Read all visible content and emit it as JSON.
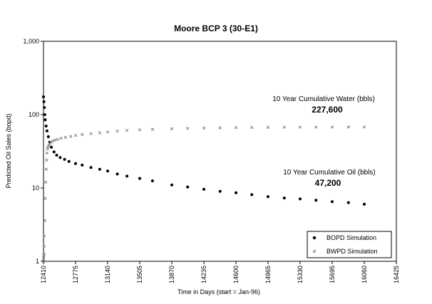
{
  "chart_data": {
    "type": "scatter",
    "title": "Moore BCP 3 (30-E1)",
    "xlabel": "Time in Days (start = Jan-96)",
    "ylabel": "Predicted Oil Sales (bopd)",
    "xlim": [
      12410,
      16425
    ],
    "ylim": [
      1,
      1000
    ],
    "yscale": "log",
    "xticks": [
      12410,
      12775,
      13140,
      13505,
      13870,
      14235,
      14600,
      14965,
      15330,
      15695,
      16060,
      16425
    ],
    "yticks": [
      {
        "value": 1,
        "label": "1"
      },
      {
        "value": 10,
        "label": "10"
      },
      {
        "value": 100,
        "label": "100"
      },
      {
        "value": 1000,
        "label": "1,000"
      }
    ],
    "grid": false,
    "legend": "bottom-right",
    "series": [
      {
        "name": "BOPD Simulation",
        "marker": "dot",
        "color": "#000000",
        "x": [
          12410,
          12415,
          12420,
          12425,
          12430,
          12440,
          12450,
          12465,
          12480,
          12500,
          12530,
          12560,
          12600,
          12650,
          12700,
          12775,
          12850,
          12950,
          13050,
          13140,
          13250,
          13360,
          13505,
          13650,
          13870,
          14050,
          14235,
          14420,
          14600,
          14780,
          14965,
          15150,
          15330,
          15510,
          15695,
          15880,
          16060
        ],
        "y": [
          175,
          150,
          125,
          100,
          85,
          70,
          60,
          50,
          42,
          36,
          31,
          28,
          26,
          24.5,
          23,
          21.5,
          20.5,
          19,
          18,
          17,
          15.5,
          14.5,
          13.5,
          12.5,
          11,
          10.3,
          9.6,
          9,
          8.6,
          8.1,
          7.6,
          7.3,
          7.1,
          6.8,
          6.5,
          6.3,
          6
        ]
      },
      {
        "name": "BWPD Simulation",
        "marker": "x",
        "color": "#808080",
        "x": [
          12410,
          12412,
          12414,
          12416,
          12418,
          12420,
          12425,
          12430,
          12435,
          12440,
          12445,
          12450,
          12455,
          12460,
          12470,
          12480,
          12495,
          12515,
          12540,
          12570,
          12610,
          12660,
          12720,
          12775,
          12850,
          12950,
          13050,
          13140,
          13250,
          13360,
          13505,
          13650,
          13870,
          14050,
          14235,
          14420,
          14600,
          14780,
          14965,
          15150,
          15330,
          15510,
          15695,
          15880,
          16060
        ],
        "y": [
          1.0,
          1.1,
          1.2,
          1.25,
          1.6,
          2.2,
          3.6,
          7.2,
          12,
          18,
          24,
          30,
          34,
          36,
          38,
          40,
          42,
          43.5,
          45,
          46,
          47.5,
          49,
          50.5,
          52,
          53.5,
          55,
          56.5,
          58,
          59.5,
          61,
          62,
          63,
          64,
          65,
          65.5,
          66,
          66.5,
          66.8,
          67,
          67.2,
          67.4,
          67.5,
          67.6,
          67.7,
          67.8
        ]
      }
    ],
    "annotations": {
      "water_label": "10 Year Cumulative Water (bbls)",
      "water_value": "227,600",
      "oil_label": "10 Year Cumulative Oil (bbls)",
      "oil_value": "47,200"
    }
  }
}
